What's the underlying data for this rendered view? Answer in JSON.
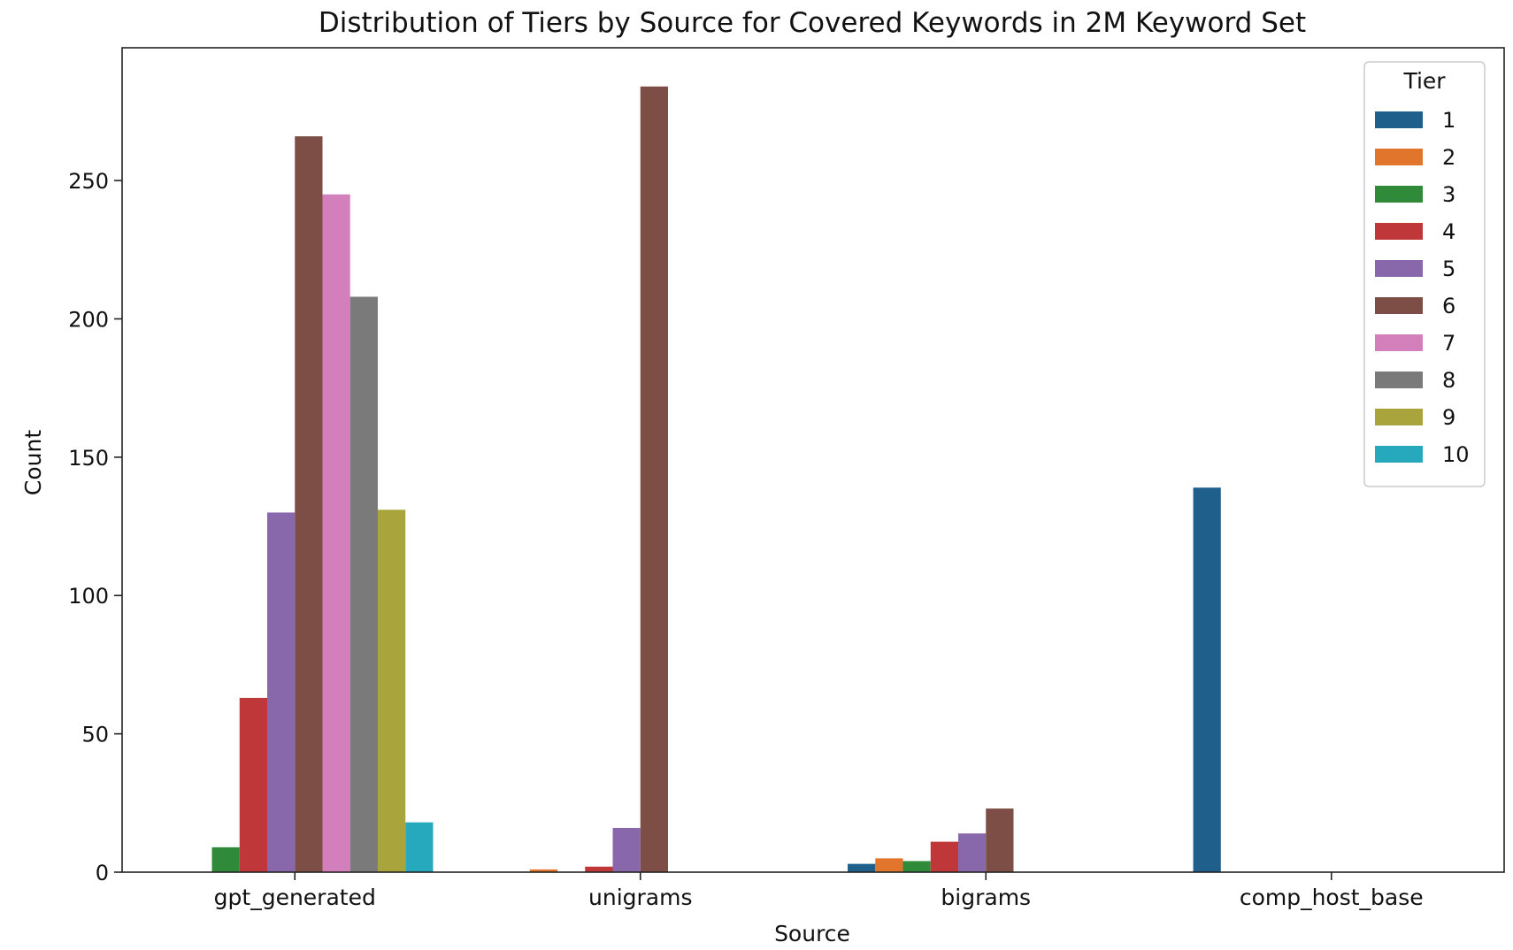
{
  "chart_data": {
    "type": "bar",
    "title": "Distribution of Tiers by Source for Covered Keywords in 2M Keyword Set",
    "xlabel": "Source",
    "ylabel": "Count",
    "categories": [
      "gpt_generated",
      "unigrams",
      "bigrams",
      "comp_host_base"
    ],
    "ylim": [
      0,
      298
    ],
    "yticks": [
      0,
      50,
      100,
      150,
      200,
      250
    ],
    "grid": false,
    "legend": {
      "title": "Tier",
      "placement": "top-right"
    },
    "series": [
      {
        "name": "1",
        "color": "#1f5f8b",
        "values": [
          0,
          0,
          3,
          139
        ]
      },
      {
        "name": "2",
        "color": "#e1752b",
        "values": [
          0,
          1,
          5,
          0
        ]
      },
      {
        "name": "3",
        "color": "#2f8a3a",
        "values": [
          9,
          0,
          4,
          0
        ]
      },
      {
        "name": "4",
        "color": "#c0373a",
        "values": [
          63,
          2,
          11,
          0
        ]
      },
      {
        "name": "5",
        "color": "#8868aa",
        "values": [
          130,
          16,
          14,
          0
        ]
      },
      {
        "name": "6",
        "color": "#7d4e45",
        "values": [
          266,
          284,
          23,
          0
        ]
      },
      {
        "name": "7",
        "color": "#d37fbb",
        "values": [
          245,
          0,
          0,
          0
        ]
      },
      {
        "name": "8",
        "color": "#7a7a7a",
        "values": [
          208,
          0,
          0,
          0
        ]
      },
      {
        "name": "9",
        "color": "#a9a43c",
        "values": [
          131,
          0,
          0,
          0
        ]
      },
      {
        "name": "10",
        "color": "#26a9bc",
        "values": [
          18,
          0,
          0,
          0
        ]
      }
    ]
  }
}
